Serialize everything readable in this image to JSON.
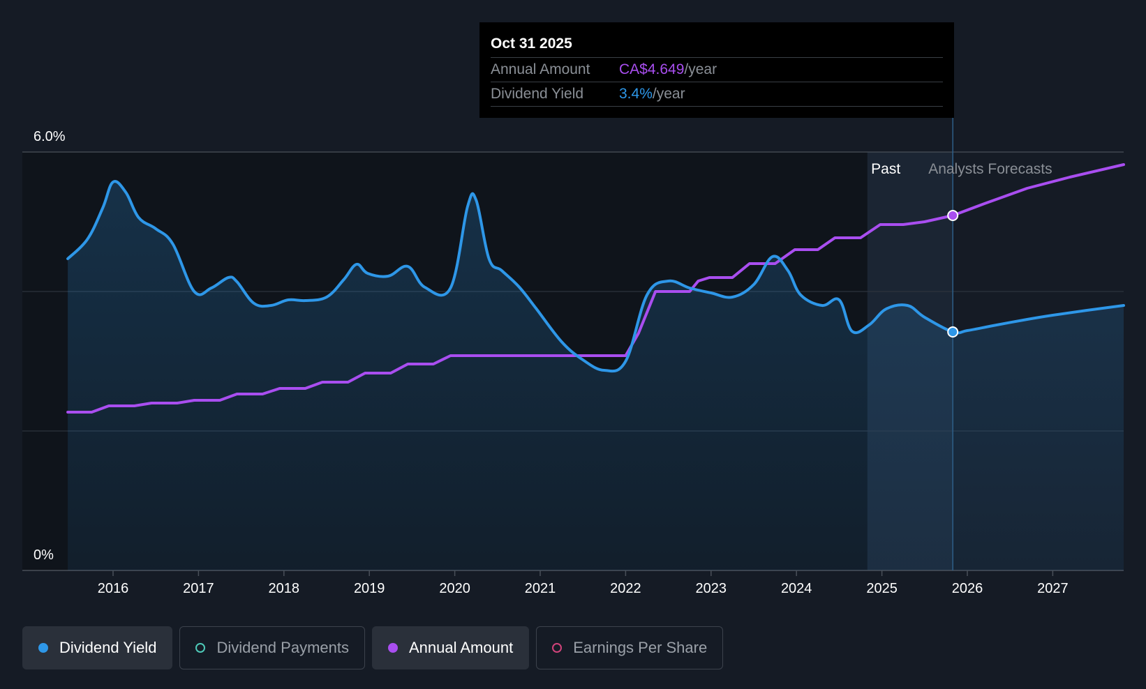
{
  "tooltip": {
    "date": "Oct 31 2025",
    "annual_label": "Annual Amount",
    "annual_value": "CA$4.649",
    "annual_unit": "/year",
    "yield_label": "Dividend Yield",
    "yield_value": "3.4%",
    "yield_unit": "/year"
  },
  "legend": [
    {
      "label": "Dividend Yield",
      "color": "#2e97e8",
      "active": true,
      "filled": true
    },
    {
      "label": "Dividend Payments",
      "color": "#4ec9b8",
      "active": false,
      "filled": false
    },
    {
      "label": "Annual Amount",
      "color": "#a94ef0",
      "active": true,
      "filled": true
    },
    {
      "label": "Earnings Per Share",
      "color": "#d0437a",
      "active": false,
      "filled": false
    }
  ],
  "colors": {
    "yield": "#2e97e8",
    "annual": "#a94ef0",
    "background": "#151b25",
    "past_region": "#0f141b"
  },
  "chart_data": {
    "type": "line",
    "x_axis": {
      "ticks": [
        "2016",
        "2017",
        "2018",
        "2019",
        "2020",
        "2021",
        "2022",
        "2023",
        "2024",
        "2025",
        "2026",
        "2027"
      ],
      "range": [
        2015.3,
        2027.83
      ]
    },
    "y_axis": {
      "ticks": [
        "6.0%",
        "0%"
      ],
      "range": [
        0,
        6.0
      ],
      "gridlines": [
        0,
        2.0,
        4.0,
        6.0
      ]
    },
    "labels": {
      "past": "Past",
      "forecast": "Analysts Forecasts"
    },
    "forecast_start": 2025.83,
    "past_region_start": 2024.83,
    "series": [
      {
        "name": "Dividend Yield",
        "role": "yield",
        "x": [
          2015.47,
          2015.7,
          2015.88,
          2016.0,
          2016.15,
          2016.3,
          2016.5,
          2016.7,
          2016.95,
          2017.15,
          2017.35,
          2017.45,
          2017.65,
          2017.85,
          2018.05,
          2018.25,
          2018.5,
          2018.7,
          2018.85,
          2018.98,
          2019.22,
          2019.45,
          2019.65,
          2019.95,
          2020.15,
          2020.25,
          2020.4,
          2020.55,
          2020.75,
          2020.95,
          2021.25,
          2021.5,
          2021.75,
          2022.0,
          2022.25,
          2022.5,
          2022.75,
          2023.0,
          2023.25,
          2023.5,
          2023.72,
          2023.9,
          2024.05,
          2024.3,
          2024.5,
          2024.65,
          2024.85,
          2025.05,
          2025.3,
          2025.5,
          2025.83,
          2026.0,
          2026.3,
          2026.7,
          2027.0,
          2027.4,
          2027.83
        ],
        "y": [
          4.47,
          4.75,
          5.2,
          5.57,
          5.42,
          5.06,
          4.9,
          4.68,
          4.0,
          4.05,
          4.2,
          4.14,
          3.83,
          3.8,
          3.88,
          3.87,
          3.92,
          4.17,
          4.39,
          4.26,
          4.22,
          4.36,
          4.06,
          4.05,
          5.22,
          5.31,
          4.47,
          4.3,
          4.07,
          3.76,
          3.28,
          3.02,
          2.87,
          3.0,
          3.95,
          4.15,
          4.05,
          3.98,
          3.92,
          4.1,
          4.5,
          4.3,
          3.95,
          3.8,
          3.88,
          3.43,
          3.52,
          3.75,
          3.8,
          3.63,
          3.42,
          3.44,
          3.51,
          3.6,
          3.66,
          3.73,
          3.8
        ]
      },
      {
        "name": "Annual Amount",
        "role": "annual",
        "x": [
          2015.47,
          2015.75,
          2015.95,
          2016.25,
          2016.45,
          2016.75,
          2016.95,
          2017.25,
          2017.45,
          2017.75,
          2017.95,
          2018.25,
          2018.45,
          2018.75,
          2018.95,
          2019.25,
          2019.45,
          2019.75,
          2019.95,
          2020.25,
          2020.5,
          2020.75,
          2021.0,
          2021.25,
          2021.5,
          2021.75,
          2021.95,
          2022.0,
          2022.15,
          2022.35,
          2022.75,
          2022.85,
          2022.98,
          2023.25,
          2023.45,
          2023.75,
          2023.98,
          2024.25,
          2024.45,
          2024.75,
          2024.98,
          2025.25,
          2025.5,
          2025.83,
          2026.2,
          2026.7,
          2027.2,
          2027.83
        ],
        "y": [
          2.27,
          2.27,
          2.36,
          2.36,
          2.4,
          2.4,
          2.44,
          2.44,
          2.53,
          2.53,
          2.61,
          2.61,
          2.7,
          2.7,
          2.83,
          2.83,
          2.96,
          2.96,
          3.08,
          3.08,
          3.08,
          3.08,
          3.08,
          3.08,
          3.08,
          3.08,
          3.08,
          3.08,
          3.4,
          4.0,
          4.0,
          4.15,
          4.2,
          4.2,
          4.4,
          4.4,
          4.6,
          4.6,
          4.77,
          4.77,
          4.96,
          4.96,
          5.0,
          5.09,
          5.26,
          5.48,
          5.64,
          5.82
        ]
      }
    ]
  }
}
